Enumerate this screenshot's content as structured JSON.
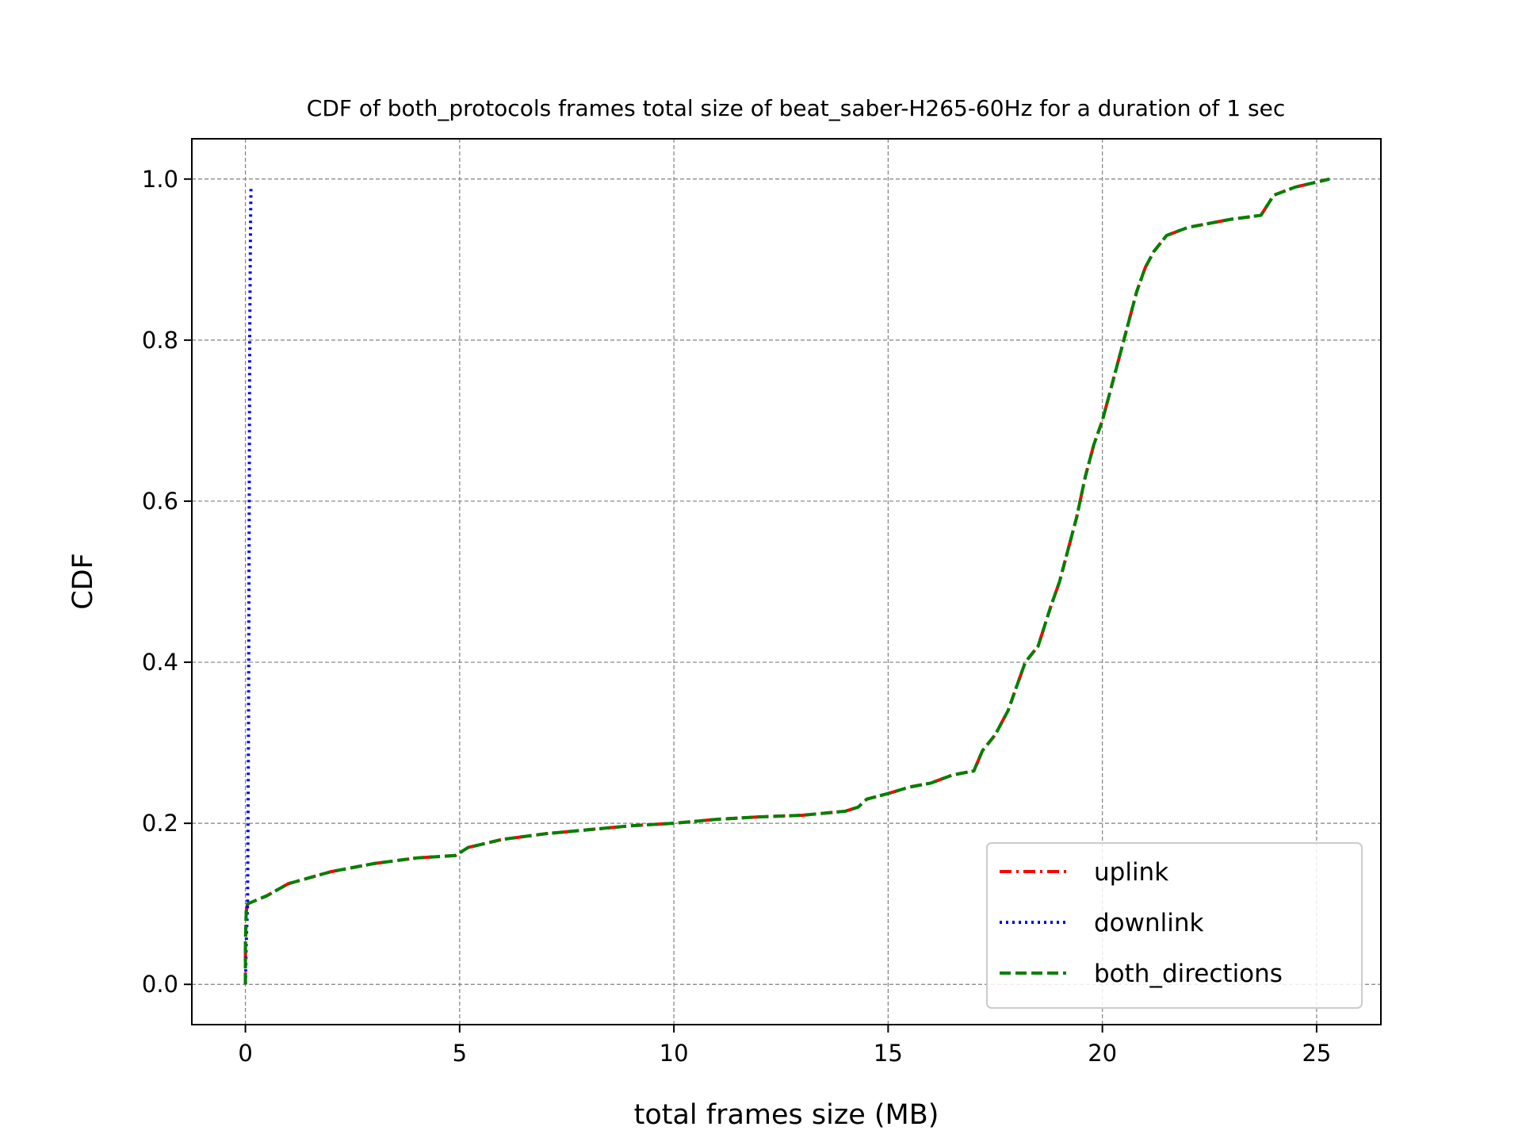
{
  "chart_data": {
    "type": "line",
    "title": "CDF of both_protocols frames total size of beat_saber-H265-60Hz for a duration of 1 sec",
    "xlabel": "total frames size (MB)",
    "ylabel": "CDF",
    "xlim": [
      -1.25,
      26.5
    ],
    "ylim": [
      -0.05,
      1.05
    ],
    "xticks": [
      0,
      5,
      10,
      15,
      20,
      25
    ],
    "yticks": [
      0.0,
      0.2,
      0.4,
      0.6,
      0.8,
      1.0
    ],
    "xtick_labels": [
      "0",
      "5",
      "10",
      "15",
      "20",
      "25"
    ],
    "ytick_labels": [
      "0.0",
      "0.2",
      "0.4",
      "0.6",
      "0.8",
      "1.0"
    ],
    "grid": true,
    "legend_position": "lower-right",
    "series": [
      {
        "name": "uplink",
        "color": "#ff0000",
        "style": "dashdot",
        "points": [
          [
            0.0,
            0.0
          ],
          [
            0.0,
            0.05
          ],
          [
            0.02,
            0.09
          ],
          [
            0.05,
            0.1
          ],
          [
            0.5,
            0.11
          ],
          [
            1.0,
            0.125
          ],
          [
            2.0,
            0.14
          ],
          [
            3.0,
            0.15
          ],
          [
            4.0,
            0.157
          ],
          [
            4.9,
            0.16
          ],
          [
            5.2,
            0.17
          ],
          [
            6.0,
            0.18
          ],
          [
            7.0,
            0.187
          ],
          [
            8.0,
            0.192
          ],
          [
            9.0,
            0.197
          ],
          [
            10.0,
            0.2
          ],
          [
            11.0,
            0.205
          ],
          [
            12.0,
            0.208
          ],
          [
            13.0,
            0.21
          ],
          [
            14.0,
            0.215
          ],
          [
            14.3,
            0.22
          ],
          [
            14.5,
            0.23
          ],
          [
            15.0,
            0.237
          ],
          [
            15.5,
            0.245
          ],
          [
            16.0,
            0.25
          ],
          [
            16.5,
            0.26
          ],
          [
            17.0,
            0.265
          ],
          [
            17.2,
            0.29
          ],
          [
            17.5,
            0.31
          ],
          [
            17.8,
            0.34
          ],
          [
            18.0,
            0.37
          ],
          [
            18.2,
            0.4
          ],
          [
            18.5,
            0.42
          ],
          [
            18.8,
            0.47
          ],
          [
            19.0,
            0.5
          ],
          [
            19.2,
            0.54
          ],
          [
            19.4,
            0.58
          ],
          [
            19.6,
            0.63
          ],
          [
            19.8,
            0.67
          ],
          [
            20.0,
            0.7
          ],
          [
            20.2,
            0.74
          ],
          [
            20.4,
            0.78
          ],
          [
            20.6,
            0.82
          ],
          [
            20.8,
            0.86
          ],
          [
            21.0,
            0.89
          ],
          [
            21.2,
            0.91
          ],
          [
            21.5,
            0.93
          ],
          [
            22.0,
            0.94
          ],
          [
            23.0,
            0.95
          ],
          [
            23.7,
            0.955
          ],
          [
            24.0,
            0.98
          ],
          [
            24.5,
            0.99
          ],
          [
            25.3,
            1.0
          ]
        ]
      },
      {
        "name": "downlink",
        "color": "#0000ff",
        "style": "dotted",
        "points": [
          [
            0.0,
            0.0
          ],
          [
            0.02,
            0.05
          ],
          [
            0.05,
            0.1
          ],
          [
            0.07,
            0.3
          ],
          [
            0.09,
            0.6
          ],
          [
            0.1,
            0.8
          ],
          [
            0.12,
            0.95
          ],
          [
            0.13,
            0.99
          ]
        ]
      },
      {
        "name": "both_directions",
        "color": "#008000",
        "style": "dashed",
        "points": [
          [
            0.0,
            0.0
          ],
          [
            0.0,
            0.05
          ],
          [
            0.02,
            0.09
          ],
          [
            0.05,
            0.1
          ],
          [
            0.5,
            0.11
          ],
          [
            1.0,
            0.125
          ],
          [
            2.0,
            0.14
          ],
          [
            3.0,
            0.15
          ],
          [
            4.0,
            0.157
          ],
          [
            4.9,
            0.16
          ],
          [
            5.2,
            0.17
          ],
          [
            6.0,
            0.18
          ],
          [
            7.0,
            0.187
          ],
          [
            8.0,
            0.192
          ],
          [
            9.0,
            0.197
          ],
          [
            10.0,
            0.2
          ],
          [
            11.0,
            0.205
          ],
          [
            12.0,
            0.208
          ],
          [
            13.0,
            0.21
          ],
          [
            14.0,
            0.215
          ],
          [
            14.3,
            0.22
          ],
          [
            14.5,
            0.23
          ],
          [
            15.0,
            0.237
          ],
          [
            15.5,
            0.245
          ],
          [
            16.0,
            0.25
          ],
          [
            16.5,
            0.26
          ],
          [
            17.0,
            0.265
          ],
          [
            17.2,
            0.29
          ],
          [
            17.5,
            0.31
          ],
          [
            17.8,
            0.34
          ],
          [
            18.0,
            0.37
          ],
          [
            18.2,
            0.4
          ],
          [
            18.5,
            0.42
          ],
          [
            18.8,
            0.47
          ],
          [
            19.0,
            0.5
          ],
          [
            19.2,
            0.54
          ],
          [
            19.4,
            0.58
          ],
          [
            19.6,
            0.63
          ],
          [
            19.8,
            0.67
          ],
          [
            20.0,
            0.7
          ],
          [
            20.2,
            0.74
          ],
          [
            20.4,
            0.78
          ],
          [
            20.6,
            0.82
          ],
          [
            20.8,
            0.86
          ],
          [
            21.0,
            0.89
          ],
          [
            21.2,
            0.91
          ],
          [
            21.5,
            0.93
          ],
          [
            22.0,
            0.94
          ],
          [
            23.0,
            0.95
          ],
          [
            23.7,
            0.955
          ],
          [
            24.0,
            0.98
          ],
          [
            24.5,
            0.99
          ],
          [
            25.3,
            1.0
          ]
        ]
      }
    ]
  }
}
